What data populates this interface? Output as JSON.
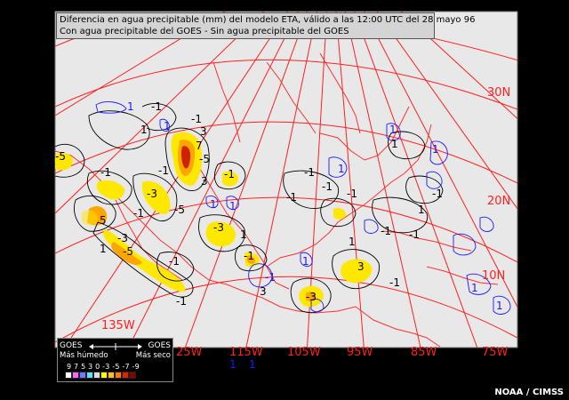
{
  "title": {
    "line1": "Diferencia en agua precipitable (mm) del modelo ETA, válido a las 12:00 UTC del 28 mayo 96",
    "line2": "Con agua precipitable del GOES - Sin agua precipitable del GOES"
  },
  "lat_labels": [
    "30N",
    "20N",
    "10N"
  ],
  "lon_labels": [
    "135W",
    "25W",
    "115W",
    "105W",
    "95W",
    "85W",
    "75W"
  ],
  "contour_labels": [
    "1",
    "-1",
    "3",
    "-3",
    "5",
    "-5",
    "7"
  ],
  "legend": {
    "left": "GOES",
    "right": "GOES",
    "left_sub": "Más húmedo",
    "right_sub": "Más seco",
    "scale": "9 7 5 3 0 -3 -5 -7 -9",
    "colors": [
      "#ffffff",
      "#ff66ff",
      "#7777ff",
      "#66ddff",
      "#dddddd",
      "#ffff00",
      "#ffbb33",
      "#ff7711",
      "#dd2200",
      "#880000"
    ]
  },
  "credit": "NOAA / CIMSS",
  "colors": {
    "background": "#e8e8e8",
    "grid": "#ff2020",
    "coast": "#ff3030",
    "positive_contour": "#000000",
    "negative_contour": "#1a1aff",
    "fill_low": "#ffe800",
    "fill_mid": "#ffa500",
    "fill_high": "#cc2200"
  }
}
